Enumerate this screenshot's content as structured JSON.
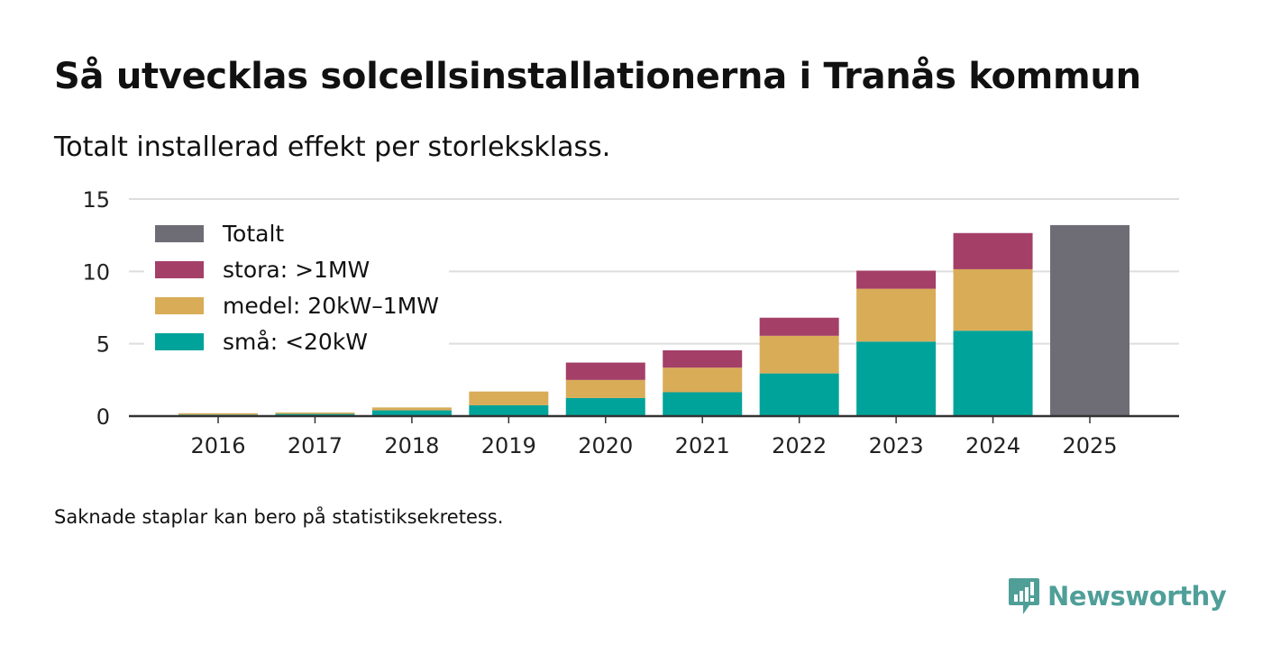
{
  "title": "Så utvecklas solcellsinstallationerna i Tranås kommun",
  "subtitle": "Totalt installerad effekt per storleksklass.",
  "footnote": "Saknade staplar kan bero på statistiksekretess.",
  "brand": {
    "name": "Newsworthy",
    "icon": "newsworthy-logo-icon",
    "color": "#4f9f98"
  },
  "colors": {
    "totalt": "#6e6d75",
    "stora": "#a43f68",
    "medel": "#d9ac58",
    "sma": "#00a39a",
    "grid": "#dddddd",
    "axis": "#333333"
  },
  "chart_data": {
    "type": "bar",
    "stacked": true,
    "categories": [
      "2016",
      "2017",
      "2018",
      "2019",
      "2020",
      "2021",
      "2022",
      "2023",
      "2024",
      "2025"
    ],
    "series": [
      {
        "name": "små: <20kW",
        "key": "sma",
        "values": [
          0.1,
          0.15,
          0.4,
          0.75,
          1.25,
          1.65,
          2.95,
          5.15,
          5.9,
          null
        ]
      },
      {
        "name": "medel: 20kW–1MW",
        "key": "medel",
        "values": [
          0.1,
          0.1,
          0.2,
          0.95,
          1.25,
          1.7,
          2.6,
          3.65,
          4.25,
          null
        ]
      },
      {
        "name": "stora: >1MW",
        "key": "stora",
        "values": [
          0,
          0,
          0,
          0,
          1.2,
          1.2,
          1.25,
          1.25,
          2.5,
          null
        ]
      },
      {
        "name": "Totalt",
        "key": "totalt",
        "values": [
          null,
          null,
          null,
          null,
          null,
          null,
          null,
          null,
          null,
          13.2
        ]
      }
    ],
    "legend": [
      "Totalt",
      "stora: >1MW",
      "medel: 20kW–1MW",
      "små: <20kW"
    ],
    "legend_keys": [
      "totalt",
      "stora",
      "medel",
      "sma"
    ],
    "legend_position": "top-left",
    "y_ticks": [
      0,
      5,
      10,
      15
    ],
    "ylim": [
      0,
      15
    ],
    "grid": true,
    "xlabel": "",
    "ylabel": ""
  }
}
